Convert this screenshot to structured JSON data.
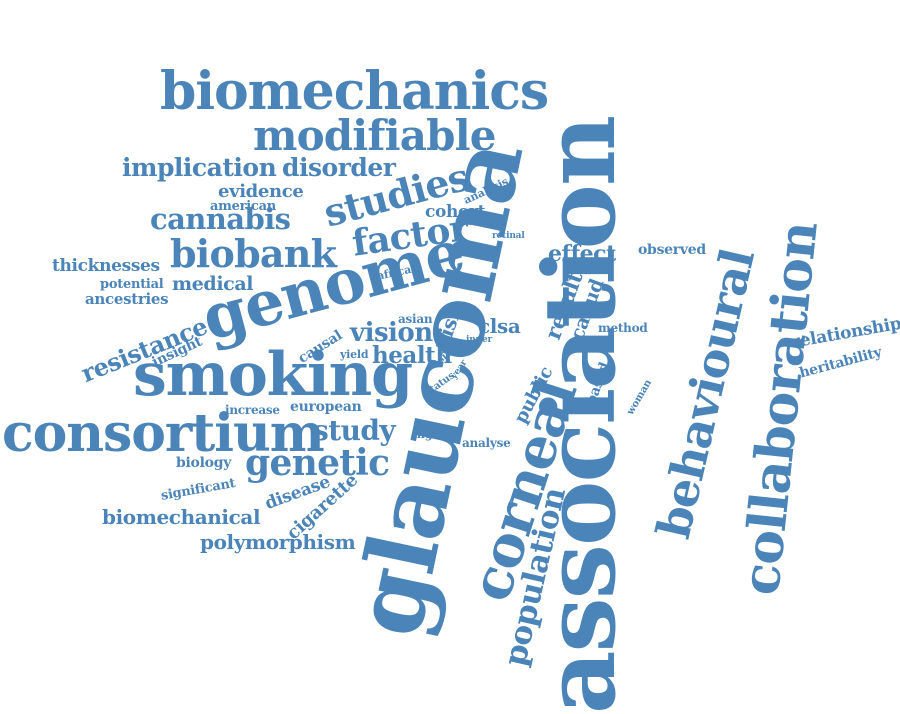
{
  "cloud": {
    "color": "#4a84b8",
    "words": [
      {
        "id": "association",
        "text": "association"
      },
      {
        "id": "glaucoma",
        "text": "glaucoma"
      },
      {
        "id": "corneal",
        "text": "corneal"
      },
      {
        "id": "collaboration",
        "text": "collaboration"
      },
      {
        "id": "behavioural",
        "text": "behavioural"
      },
      {
        "id": "population",
        "text": "population"
      },
      {
        "id": "biomechanics",
        "text": "biomechanics"
      },
      {
        "id": "modifiable",
        "text": "modifiable"
      },
      {
        "id": "genome",
        "text": "genome"
      },
      {
        "id": "smoking",
        "text": "smoking"
      },
      {
        "id": "consortium",
        "text": "consortium"
      },
      {
        "id": "studies",
        "text": "studies"
      },
      {
        "id": "biobank",
        "text": "biobank"
      },
      {
        "id": "factor",
        "text": "factor"
      },
      {
        "id": "genetic",
        "text": "genetic"
      },
      {
        "id": "cannabis",
        "text": "cannabis"
      },
      {
        "id": "implication",
        "text": "implication"
      },
      {
        "id": "disorder",
        "text": "disorder"
      },
      {
        "id": "study",
        "text": "study"
      },
      {
        "id": "vision",
        "text": "vision"
      },
      {
        "id": "health",
        "text": "health"
      },
      {
        "id": "evidence",
        "text": "evidence"
      },
      {
        "id": "american",
        "text": "american"
      },
      {
        "id": "cohort",
        "text": "cohort"
      },
      {
        "id": "analysis",
        "text": "analysis"
      },
      {
        "id": "effect",
        "text": "effect"
      },
      {
        "id": "retinal",
        "text": "retinal"
      },
      {
        "id": "observed",
        "text": "observed"
      },
      {
        "id": "african",
        "text": "african"
      },
      {
        "id": "result",
        "text": "result"
      },
      {
        "id": "canud",
        "text": "canud"
      },
      {
        "id": "thicknesses",
        "text": "thicknesses"
      },
      {
        "id": "potential",
        "text": "potential"
      },
      {
        "id": "medical",
        "text": "medical"
      },
      {
        "id": "ancestries",
        "text": "ancestries"
      },
      {
        "id": "resistance",
        "text": "resistance"
      },
      {
        "id": "insight",
        "text": "insight"
      },
      {
        "id": "causal",
        "text": "causal"
      },
      {
        "id": "asian",
        "text": "asian"
      },
      {
        "id": "risk",
        "text": "risk"
      },
      {
        "id": "clsa",
        "text": "clsa"
      },
      {
        "id": "yield",
        "text": "yield"
      },
      {
        "id": "single",
        "text": "single"
      },
      {
        "id": "inner",
        "text": "inner"
      },
      {
        "id": "year",
        "text": "year"
      },
      {
        "id": "status",
        "text": "status"
      },
      {
        "id": "public",
        "text": "public"
      },
      {
        "id": "based",
        "text": "based"
      },
      {
        "id": "method",
        "text": "method"
      },
      {
        "id": "woman",
        "text": "woman"
      },
      {
        "id": "relationship",
        "text": "relationship"
      },
      {
        "id": "heritability",
        "text": "heritability"
      },
      {
        "id": "increase",
        "text": "increase"
      },
      {
        "id": "european",
        "text": "european"
      },
      {
        "id": "higher",
        "text": "higher"
      },
      {
        "id": "analyse",
        "text": "analyse"
      },
      {
        "id": "biology",
        "text": "biology"
      },
      {
        "id": "significant",
        "text": "significant"
      },
      {
        "id": "disease",
        "text": "disease"
      },
      {
        "id": "cigarette",
        "text": "cigarette"
      },
      {
        "id": "biomechanical",
        "text": "biomechanical"
      },
      {
        "id": "polymorphism",
        "text": "polymorphism"
      }
    ]
  }
}
